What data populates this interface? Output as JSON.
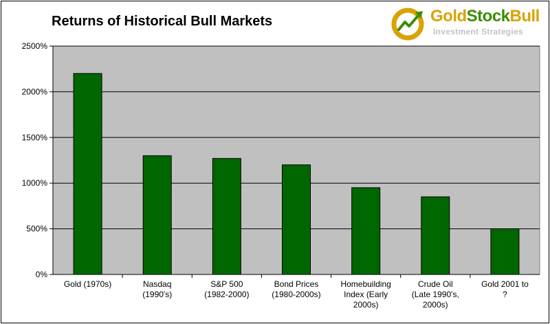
{
  "title": "Returns of Historical Bull Markets",
  "logo": {
    "name_part1": "Gold",
    "name_part2": "Stock",
    "name_part3": "Bull",
    "tagline": "Investment Strategies",
    "icon": "gold-coin-arrow-icon",
    "colors": {
      "gold": "#d9a300",
      "green": "#3b8c00",
      "gray": "#c2c2c2"
    }
  },
  "colors": {
    "bar": "#006600",
    "plot_bg": "#c0c0c0",
    "gridline": "#000000"
  },
  "chart_data": {
    "type": "bar",
    "title": "Returns of Historical Bull Markets",
    "xlabel": "",
    "ylabel": "",
    "ylim": [
      0,
      2500
    ],
    "yticks": [
      0,
      500,
      1000,
      1500,
      2000,
      2500
    ],
    "ytick_labels": [
      "0%",
      "500%",
      "1000%",
      "1500%",
      "2000%",
      "2500%"
    ],
    "grid": true,
    "legend": "none",
    "categories": [
      [
        "Gold (1970s)"
      ],
      [
        "Nasdaq",
        "(1990's)"
      ],
      [
        "S&P 500",
        "(1982-2000)"
      ],
      [
        "Bond Prices",
        "(1980-2000s)"
      ],
      [
        "Homebuilding",
        "Index (Early",
        "2000s)"
      ],
      [
        "Crude Oil",
        "(Late 1990's,",
        "2000s)"
      ],
      [
        "Gold 2001 to",
        "?"
      ]
    ],
    "values": [
      2200,
      1300,
      1270,
      1200,
      950,
      850,
      500
    ]
  }
}
